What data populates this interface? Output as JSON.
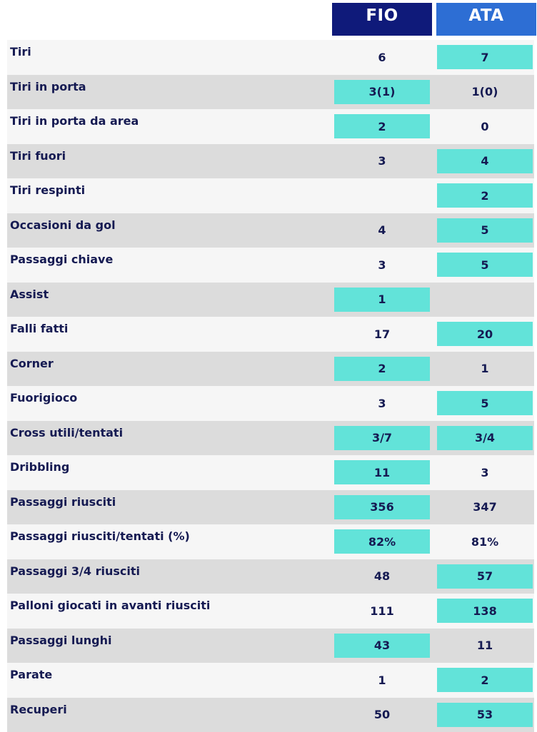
{
  "teams": {
    "home": "FIO",
    "away": "ATA"
  },
  "colors": {
    "home_header": "#0f1a7a",
    "away_header": "#2d6ed4",
    "highlight": "#62e3d9",
    "text": "#151a52",
    "row_shade": "#dcdcdc",
    "row_light": "#f6f6f6"
  },
  "rows": [
    {
      "label": "Tiri",
      "home": "6",
      "away": "7",
      "highlight": "away"
    },
    {
      "label": "Tiri in porta",
      "home": "3(1)",
      "away": "1(0)",
      "highlight": "home"
    },
    {
      "label": "Tiri in porta da area",
      "home": "2",
      "away": "0",
      "highlight": "home"
    },
    {
      "label": "Tiri fuori",
      "home": "3",
      "away": "4",
      "highlight": "away"
    },
    {
      "label": "Tiri respinti",
      "home": "",
      "away": "2",
      "highlight": "away"
    },
    {
      "label": "Occasioni da gol",
      "home": "4",
      "away": "5",
      "highlight": "away"
    },
    {
      "label": "Passaggi chiave",
      "home": "3",
      "away": "5",
      "highlight": "away"
    },
    {
      "label": "Assist",
      "home": "1",
      "away": "",
      "highlight": "home"
    },
    {
      "label": "Falli fatti",
      "home": "17",
      "away": "20",
      "highlight": "away"
    },
    {
      "label": "Corner",
      "home": "2",
      "away": "1",
      "highlight": "home"
    },
    {
      "label": "Fuorigioco",
      "home": "3",
      "away": "5",
      "highlight": "away"
    },
    {
      "label": "Cross utili/tentati",
      "home": "3/7",
      "away": "3/4",
      "highlight": "both"
    },
    {
      "label": "Dribbling",
      "home": "11",
      "away": "3",
      "highlight": "home"
    },
    {
      "label": "Passaggi riusciti",
      "home": "356",
      "away": "347",
      "highlight": "home"
    },
    {
      "label": "Passaggi riusciti/tentati (%)",
      "home": "82%",
      "away": "81%",
      "highlight": "home"
    },
    {
      "label": "Passaggi 3/4 riusciti",
      "home": "48",
      "away": "57",
      "highlight": "away"
    },
    {
      "label": "Palloni giocati in avanti riusciti",
      "home": "111",
      "away": "138",
      "highlight": "away"
    },
    {
      "label": "Passaggi lunghi",
      "home": "43",
      "away": "11",
      "highlight": "home"
    },
    {
      "label": "Parate",
      "home": "1",
      "away": "2",
      "highlight": "away"
    },
    {
      "label": "Recuperi",
      "home": "50",
      "away": "53",
      "highlight": "away"
    }
  ]
}
